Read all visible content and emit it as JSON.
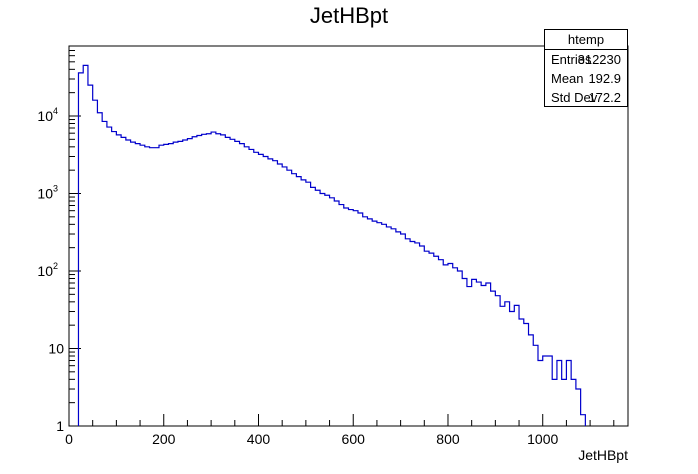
{
  "chart_data": {
    "type": "histogram",
    "title": "JetHBpt",
    "xlabel": "JetHBpt",
    "ylabel": "",
    "xlim": [
      0,
      1180
    ],
    "ylim": [
      1,
      80000
    ],
    "y_scale": "log",
    "bin_width": 10,
    "x_ticks": [
      0,
      200,
      400,
      600,
      800,
      1000
    ],
    "y_ticks": [
      {
        "value": 1,
        "base": "1",
        "exp": ""
      },
      {
        "value": 10,
        "base": "10",
        "exp": ""
      },
      {
        "value": 100,
        "base": "10",
        "exp": "2"
      },
      {
        "value": 1000,
        "base": "10",
        "exp": "3"
      },
      {
        "value": 10000,
        "base": "10",
        "exp": "4"
      }
    ],
    "line_color": "#0000cc",
    "bins": [
      {
        "x": 20,
        "y": 36000
      },
      {
        "x": 30,
        "y": 45000
      },
      {
        "x": 40,
        "y": 25000
      },
      {
        "x": 50,
        "y": 16000
      },
      {
        "x": 60,
        "y": 11000
      },
      {
        "x": 70,
        "y": 8500
      },
      {
        "x": 80,
        "y": 7200
      },
      {
        "x": 90,
        "y": 6300
      },
      {
        "x": 100,
        "y": 5700
      },
      {
        "x": 110,
        "y": 5300
      },
      {
        "x": 120,
        "y": 4900
      },
      {
        "x": 130,
        "y": 4600
      },
      {
        "x": 140,
        "y": 4400
      },
      {
        "x": 150,
        "y": 4200
      },
      {
        "x": 160,
        "y": 4000
      },
      {
        "x": 170,
        "y": 3900
      },
      {
        "x": 180,
        "y": 3900
      },
      {
        "x": 190,
        "y": 4200
      },
      {
        "x": 200,
        "y": 4300
      },
      {
        "x": 210,
        "y": 4400
      },
      {
        "x": 220,
        "y": 4600
      },
      {
        "x": 230,
        "y": 4700
      },
      {
        "x": 240,
        "y": 4900
      },
      {
        "x": 250,
        "y": 5100
      },
      {
        "x": 260,
        "y": 5400
      },
      {
        "x": 270,
        "y": 5600
      },
      {
        "x": 280,
        "y": 5800
      },
      {
        "x": 290,
        "y": 5900
      },
      {
        "x": 300,
        "y": 6200
      },
      {
        "x": 310,
        "y": 5900
      },
      {
        "x": 320,
        "y": 5700
      },
      {
        "x": 330,
        "y": 5300
      },
      {
        "x": 340,
        "y": 5000
      },
      {
        "x": 350,
        "y": 4700
      },
      {
        "x": 360,
        "y": 4400
      },
      {
        "x": 370,
        "y": 4000
      },
      {
        "x": 380,
        "y": 3700
      },
      {
        "x": 390,
        "y": 3400
      },
      {
        "x": 400,
        "y": 3200
      },
      {
        "x": 410,
        "y": 3000
      },
      {
        "x": 420,
        "y": 2800
      },
      {
        "x": 430,
        "y": 2650
      },
      {
        "x": 440,
        "y": 2400
      },
      {
        "x": 450,
        "y": 2200
      },
      {
        "x": 460,
        "y": 2000
      },
      {
        "x": 470,
        "y": 1800
      },
      {
        "x": 480,
        "y": 1650
      },
      {
        "x": 490,
        "y": 1500
      },
      {
        "x": 500,
        "y": 1400
      },
      {
        "x": 510,
        "y": 1200
      },
      {
        "x": 520,
        "y": 1100
      },
      {
        "x": 530,
        "y": 1000
      },
      {
        "x": 540,
        "y": 950
      },
      {
        "x": 550,
        "y": 880
      },
      {
        "x": 560,
        "y": 800
      },
      {
        "x": 570,
        "y": 720
      },
      {
        "x": 580,
        "y": 650
      },
      {
        "x": 590,
        "y": 620
      },
      {
        "x": 600,
        "y": 600
      },
      {
        "x": 610,
        "y": 560
      },
      {
        "x": 620,
        "y": 500
      },
      {
        "x": 630,
        "y": 470
      },
      {
        "x": 640,
        "y": 440
      },
      {
        "x": 650,
        "y": 420
      },
      {
        "x": 660,
        "y": 400
      },
      {
        "x": 670,
        "y": 370
      },
      {
        "x": 680,
        "y": 350
      },
      {
        "x": 690,
        "y": 320
      },
      {
        "x": 700,
        "y": 300
      },
      {
        "x": 710,
        "y": 260
      },
      {
        "x": 720,
        "y": 240
      },
      {
        "x": 730,
        "y": 230
      },
      {
        "x": 740,
        "y": 210
      },
      {
        "x": 750,
        "y": 180
      },
      {
        "x": 760,
        "y": 170
      },
      {
        "x": 770,
        "y": 155
      },
      {
        "x": 780,
        "y": 140
      },
      {
        "x": 790,
        "y": 120
      },
      {
        "x": 800,
        "y": 125
      },
      {
        "x": 810,
        "y": 110
      },
      {
        "x": 820,
        "y": 100
      },
      {
        "x": 830,
        "y": 80
      },
      {
        "x": 840,
        "y": 63
      },
      {
        "x": 850,
        "y": 78
      },
      {
        "x": 860,
        "y": 72
      },
      {
        "x": 870,
        "y": 65
      },
      {
        "x": 880,
        "y": 70
      },
      {
        "x": 890,
        "y": 55
      },
      {
        "x": 900,
        "y": 48
      },
      {
        "x": 910,
        "y": 35
      },
      {
        "x": 920,
        "y": 40
      },
      {
        "x": 930,
        "y": 30
      },
      {
        "x": 940,
        "y": 36
      },
      {
        "x": 950,
        "y": 24
      },
      {
        "x": 960,
        "y": 21
      },
      {
        "x": 970,
        "y": 15
      },
      {
        "x": 980,
        "y": 11
      },
      {
        "x": 990,
        "y": 7
      },
      {
        "x": 1000,
        "y": 8
      },
      {
        "x": 1010,
        "y": 8
      },
      {
        "x": 1020,
        "y": 4
      },
      {
        "x": 1030,
        "y": 7
      },
      {
        "x": 1040,
        "y": 4
      },
      {
        "x": 1050,
        "y": 7
      },
      {
        "x": 1060,
        "y": 4
      },
      {
        "x": 1070,
        "y": 3
      },
      {
        "x": 1080,
        "y": 1.4
      }
    ]
  },
  "stats_box": {
    "name": "htemp",
    "entries_label": "Entries",
    "entries_value": "312230",
    "mean_label": "Mean",
    "mean_value": "192.9",
    "stddev_label": "Std Dev",
    "stddev_value": "172.2"
  }
}
